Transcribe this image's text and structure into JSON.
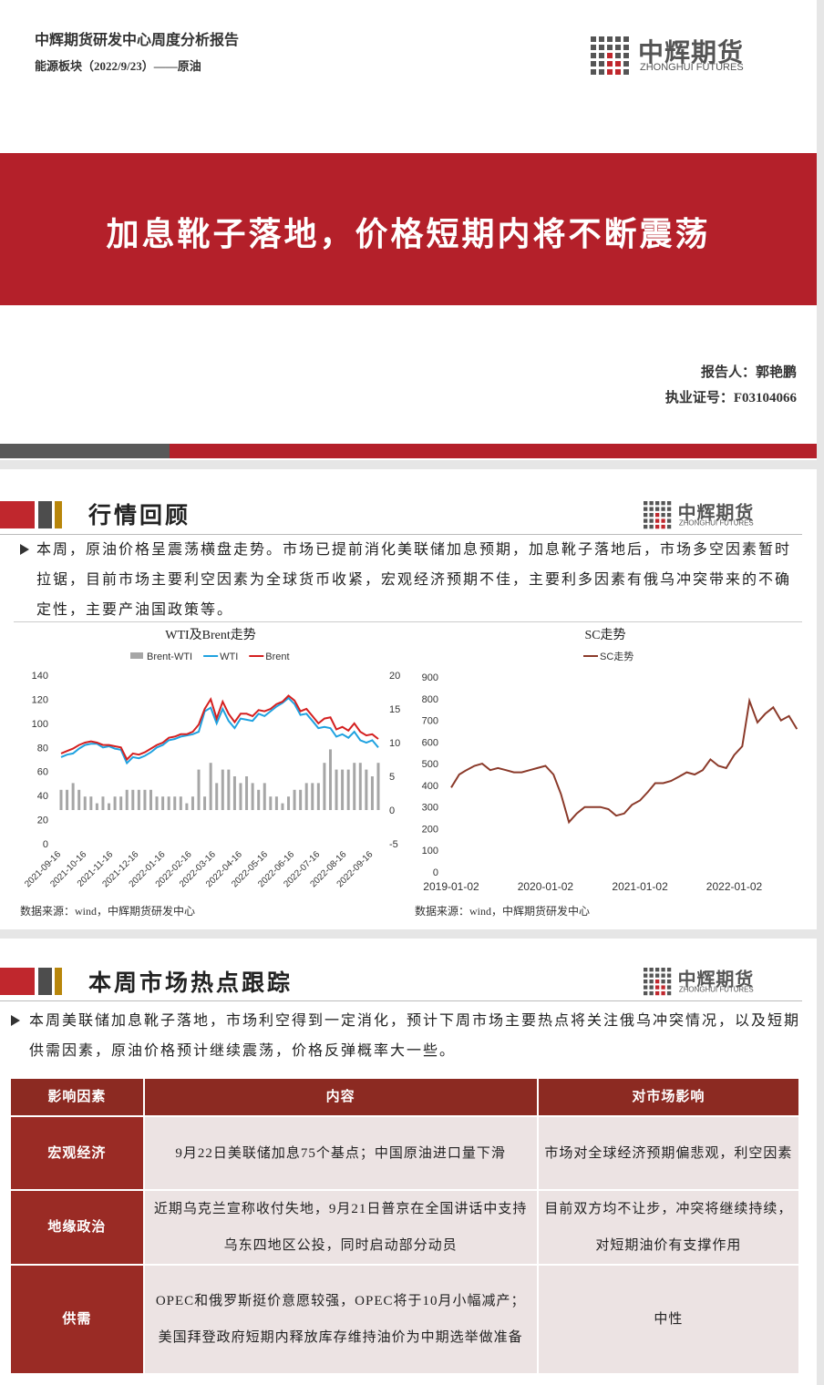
{
  "header": {
    "title": "中辉期货研发中心周度分析报告",
    "subtitle": "能源板块（2022/9/23）——原油"
  },
  "logo": {
    "name": "中辉期货",
    "name_en": "ZHONGHUI FUTURES"
  },
  "cover": {
    "title": "加息靴子落地，价格短期内将不断震荡",
    "reporter": "报告人：郭艳鹏",
    "license": "执业证号：F03104066"
  },
  "sections": [
    {
      "title": "行情回顾",
      "text": "本周，原油价格呈震荡横盘走势。市场已提前消化美联储加息预期，加息靴子落地后，市场多空因素暂时拉锯，目前市场主要利空因素为全球货币收紧，宏观经济预期不佳，主要利多因素有俄乌冲突带来的不确定性，主要产油国政策等。"
    },
    {
      "title": "本周市场热点跟踪",
      "text": "本周美联储加息靴子落地，市场利空得到一定消化，预计下周市场主要热点将关注俄乌冲突情况，以及短期供需因素，原油价格预计继续震荡，价格反弹概率大一些。"
    }
  ],
  "chart_data": [
    {
      "type": "line",
      "title": "WTI及Brent走势",
      "source": "数据来源：wind，中辉期货研发中心",
      "x": [
        "2021-09-16",
        "2021-09-23",
        "2021-09-30",
        "2021-10-07",
        "2021-10-14",
        "2021-10-21",
        "2021-10-28",
        "2021-11-04",
        "2021-11-11",
        "2021-11-18",
        "2021-11-25",
        "2021-12-02",
        "2021-12-09",
        "2021-12-16",
        "2021-12-23",
        "2021-12-30",
        "2022-01-06",
        "2022-01-13",
        "2022-01-20",
        "2022-01-27",
        "2022-02-03",
        "2022-02-10",
        "2022-02-17",
        "2022-02-24",
        "2022-03-03",
        "2022-03-10",
        "2022-03-17",
        "2022-03-24",
        "2022-03-31",
        "2022-04-07",
        "2022-04-14",
        "2022-04-21",
        "2022-04-28",
        "2022-05-05",
        "2022-05-12",
        "2022-05-19",
        "2022-05-26",
        "2022-06-02",
        "2022-06-09",
        "2022-06-16",
        "2022-06-23",
        "2022-06-30",
        "2022-07-07",
        "2022-07-14",
        "2022-07-21",
        "2022-07-28",
        "2022-08-04",
        "2022-08-11",
        "2022-08-18",
        "2022-08-25",
        "2022-09-01",
        "2022-09-08",
        "2022-09-15",
        "2022-09-22"
      ],
      "xlim": [
        "2021-09-16",
        "2022-09-22"
      ],
      "xticks": [
        "2021-09-16",
        "2021-10-16",
        "2021-11-16",
        "2021-12-16",
        "2022-01-16",
        "2022-02-16",
        "2022-03-16",
        "2022-04-16",
        "2022-05-16",
        "2022-06-16",
        "2022-07-16",
        "2022-08-16",
        "2022-09-16"
      ],
      "ylim": [
        0,
        140
      ],
      "yticks": [
        0,
        20,
        40,
        60,
        80,
        100,
        120,
        140
      ],
      "y2lim": [
        -5,
        20
      ],
      "y2ticks": [
        -5,
        0,
        5,
        10,
        15,
        20
      ],
      "series": [
        {
          "name": "Brent-WTI",
          "type": "bar",
          "axis": "y2",
          "color": "#a6a6a6",
          "values": [
            3,
            3,
            4,
            3,
            2,
            2,
            1,
            2,
            1,
            2,
            2,
            3,
            3,
            3,
            3,
            3,
            2,
            2,
            2,
            2,
            2,
            1,
            2,
            6,
            2,
            7,
            4,
            6,
            6,
            5,
            4,
            5,
            4,
            3,
            4,
            2,
            2,
            1,
            2,
            3,
            3,
            4,
            4,
            4,
            7,
            9,
            6,
            6,
            6,
            7,
            7,
            6,
            5,
            7
          ]
        },
        {
          "name": "WTI",
          "color": "#1fa2e0",
          "values": [
            72,
            74,
            75,
            79,
            82,
            83,
            83,
            80,
            81,
            79,
            78,
            67,
            72,
            71,
            73,
            76,
            80,
            82,
            86,
            87,
            89,
            90,
            91,
            93,
            110,
            113,
            100,
            112,
            102,
            96,
            104,
            103,
            102,
            108,
            106,
            110,
            114,
            117,
            121,
            116,
            107,
            108,
            102,
            96,
            97,
            96,
            89,
            91,
            88,
            93,
            86,
            84,
            86,
            80
          ]
        },
        {
          "name": "Brent",
          "color": "#d42020",
          "values": [
            75,
            77,
            79,
            82,
            84,
            85,
            84,
            82,
            82,
            81,
            80,
            70,
            75,
            74,
            76,
            79,
            82,
            84,
            88,
            89,
            91,
            91,
            93,
            99,
            112,
            120,
            104,
            118,
            108,
            101,
            108,
            108,
            106,
            111,
            110,
            112,
            116,
            118,
            123,
            119,
            110,
            112,
            106,
            100,
            104,
            105,
            95,
            97,
            94,
            100,
            93,
            90,
            91,
            87
          ]
        }
      ]
    },
    {
      "type": "line",
      "title": "SC走势",
      "source": "数据来源：wind，中辉期货研发中心",
      "x": [
        "2019-01-02",
        "2019-02-02",
        "2019-03-02",
        "2019-04-02",
        "2019-05-02",
        "2019-06-02",
        "2019-07-02",
        "2019-08-02",
        "2019-09-02",
        "2019-10-02",
        "2019-11-02",
        "2019-12-02",
        "2020-01-02",
        "2020-02-02",
        "2020-03-02",
        "2020-04-02",
        "2020-05-02",
        "2020-06-02",
        "2020-07-02",
        "2020-08-02",
        "2020-09-02",
        "2020-10-02",
        "2020-11-02",
        "2020-12-02",
        "2021-01-02",
        "2021-02-02",
        "2021-03-02",
        "2021-04-02",
        "2021-05-02",
        "2021-06-02",
        "2021-07-02",
        "2021-08-02",
        "2021-09-02",
        "2021-10-02",
        "2021-11-02",
        "2021-12-02",
        "2022-01-02",
        "2022-02-02",
        "2022-03-02",
        "2022-04-02",
        "2022-05-02",
        "2022-06-02",
        "2022-07-02",
        "2022-08-02",
        "2022-09-02"
      ],
      "xlim": [
        "2019-01-02",
        "2022-09-22"
      ],
      "xticks": [
        "2019-01-02",
        "2020-01-02",
        "2021-01-02",
        "2022-01-02"
      ],
      "ylim": [
        0,
        900
      ],
      "yticks": [
        0,
        100,
        200,
        300,
        400,
        500,
        600,
        700,
        800,
        900
      ],
      "series": [
        {
          "name": "SC走势",
          "color": "#8b3a2a",
          "values": [
            390,
            450,
            470,
            490,
            500,
            470,
            480,
            470,
            460,
            460,
            470,
            480,
            490,
            450,
            360,
            230,
            270,
            300,
            300,
            300,
            290,
            260,
            270,
            310,
            330,
            370,
            410,
            410,
            420,
            440,
            460,
            450,
            470,
            520,
            490,
            480,
            540,
            580,
            790,
            690,
            730,
            760,
            700,
            720,
            660
          ]
        }
      ]
    }
  ],
  "table": {
    "header": [
      "影响因素",
      "内容",
      "对市场影响"
    ],
    "rows": [
      [
        "宏观经济",
        [
          "9月22日美联储加息75个基点；中国原油进口量下滑"
        ],
        "市场对全球经济预期偏悲观，利空因素"
      ],
      [
        "地缘政治",
        [
          "近期乌克兰宣称收付失地，9月21日普京在全国讲话中支持乌东四地区公投，同时启动部分动员"
        ],
        "目前双方均不让步，冲突将继续持续，对短期油价有支撑作用"
      ],
      [
        "供需",
        [
          "OPEC和俄罗斯挺价意愿较强，OPEC将于10月小幅减产；",
          "美国拜登政府短期内释放库存维持油价为中期选举做准备"
        ],
        "中性"
      ]
    ]
  }
}
